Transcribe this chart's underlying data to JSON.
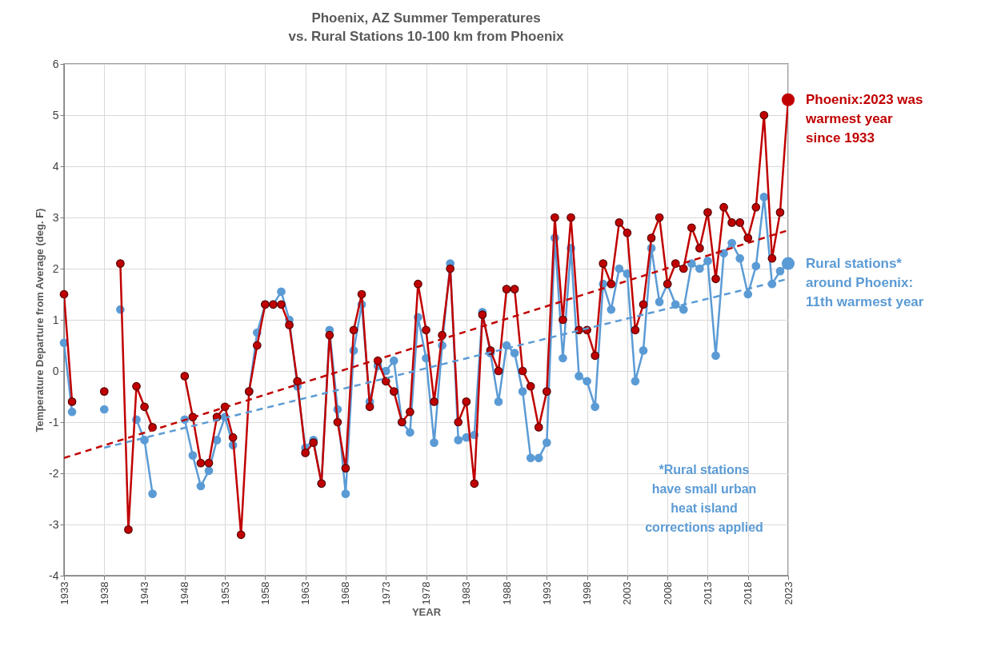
{
  "chart_data": {
    "type": "line",
    "title": "Phoenix, AZ Summer Temperatures",
    "subtitle": "vs. Rural Stations 10-100 km from Phoenix",
    "xlabel": "YEAR",
    "ylabel": "Temperature Departure from Average (deg. F)",
    "x": [
      1933,
      1934,
      1935,
      1936,
      1937,
      1938,
      1939,
      1940,
      1941,
      1942,
      1943,
      1944,
      1945,
      1946,
      1947,
      1948,
      1949,
      1950,
      1951,
      1952,
      1953,
      1954,
      1955,
      1956,
      1957,
      1958,
      1959,
      1960,
      1961,
      1962,
      1963,
      1964,
      1965,
      1966,
      1967,
      1968,
      1969,
      1970,
      1971,
      1972,
      1973,
      1974,
      1975,
      1976,
      1977,
      1978,
      1979,
      1980,
      1981,
      1982,
      1983,
      1984,
      1985,
      1986,
      1987,
      1988,
      1989,
      1990,
      1991,
      1992,
      1993,
      1994,
      1995,
      1996,
      1997,
      1998,
      1999,
      2000,
      2001,
      2002,
      2003,
      2004,
      2005,
      2006,
      2007,
      2008,
      2009,
      2010,
      2011,
      2012,
      2013,
      2014,
      2015,
      2016,
      2017,
      2018,
      2019,
      2020,
      2021,
      2022,
      2023
    ],
    "series": [
      {
        "color": "#5b9bd5",
        "marker": "circle",
        "line_style": "solid",
        "values": [
          0.55,
          -0.8,
          null,
          null,
          null,
          -0.75,
          null,
          1.2,
          null,
          -0.95,
          -1.35,
          -2.4,
          null,
          null,
          null,
          -0.95,
          -1.65,
          -2.25,
          -1.95,
          -1.35,
          -0.9,
          -1.45,
          null,
          -0.4,
          0.75,
          1.3,
          1.3,
          1.55,
          1.0,
          -0.3,
          -1.5,
          -1.35,
          -2.2,
          0.8,
          -0.75,
          -2.4,
          0.4,
          1.3,
          -0.6,
          0.1,
          0.0,
          0.2,
          -1.0,
          -1.2,
          1.05,
          0.25,
          -1.4,
          0.5,
          2.1,
          -1.35,
          -1.3,
          -1.25,
          1.15,
          0.35,
          -0.6,
          0.5,
          0.35,
          -0.4,
          -1.7,
          -1.7,
          -1.4,
          2.6,
          0.25,
          2.4,
          -0.1,
          -0.2,
          -0.7,
          1.7,
          1.2,
          2.0,
          1.9,
          -0.2,
          0.4,
          2.4,
          1.35,
          1.7,
          1.3,
          1.2,
          2.1,
          2.0,
          2.15,
          0.3,
          2.3,
          2.5,
          2.2,
          1.5,
          2.05,
          3.4,
          1.7,
          1.95,
          2.1
        ]
      },
      {
        "color": "#c00000",
        "marker": "circle",
        "line_style": "solid",
        "values": [
          1.5,
          -0.6,
          null,
          null,
          null,
          -0.4,
          null,
          2.1,
          -3.1,
          -0.3,
          -0.7,
          -1.1,
          null,
          null,
          null,
          -0.1,
          -0.9,
          -1.8,
          -1.8,
          -0.9,
          -0.7,
          -1.3,
          -3.2,
          -0.4,
          0.5,
          1.3,
          1.3,
          1.3,
          0.9,
          -0.2,
          -1.6,
          -1.4,
          -2.2,
          0.7,
          -1.0,
          -1.9,
          0.8,
          1.5,
          -0.7,
          0.2,
          -0.2,
          -0.4,
          -1.0,
          -0.8,
          1.7,
          0.8,
          -0.6,
          0.7,
          2.0,
          -1.0,
          -0.6,
          -2.2,
          1.1,
          0.4,
          0.0,
          1.6,
          1.6,
          0.0,
          -0.3,
          -1.1,
          -0.4,
          3.0,
          1.0,
          3.0,
          0.8,
          0.8,
          0.3,
          2.1,
          1.7,
          2.9,
          2.7,
          0.8,
          1.3,
          2.6,
          3.0,
          1.7,
          2.1,
          2.0,
          2.8,
          2.4,
          3.1,
          1.8,
          3.2,
          2.9,
          2.9,
          2.6,
          3.2,
          5.0,
          2.2,
          3.1,
          5.3
        ]
      },
      {
        "type": "line",
        "color": "#5b9bd5",
        "marker": "none",
        "line_style": "dashed",
        "x": [
          1938,
          2023
        ],
        "values": [
          -1.5,
          1.8
        ]
      },
      {
        "type": "line",
        "color": "#c00000",
        "marker": "none",
        "line_style": "dashed",
        "x": [
          1933,
          2023
        ],
        "values": [
          -1.7,
          2.75
        ]
      }
    ],
    "xlim": [
      1933,
      2023
    ],
    "xticks": [
      1933,
      1938,
      1943,
      1948,
      1953,
      1958,
      1963,
      1968,
      1973,
      1978,
      1983,
      1988,
      1993,
      1998,
      2003,
      2008,
      2013,
      2018,
      2023
    ],
    "ylim": [
      -4,
      6
    ],
    "yticks": [
      -4,
      -3,
      -2,
      -1,
      0,
      1,
      2,
      3,
      4,
      5,
      6
    ],
    "grid": true,
    "annotations": [
      {
        "text": "Phoenix:2023 was warmest year since 1933",
        "x": 2023,
        "y": 5.3
      },
      {
        "text": "Rural stations* around Phoenix: 11th warmest year",
        "x": 2023,
        "y": 2.1
      },
      "*Rural stations have small urban heat island corrections applied"
    ]
  }
}
